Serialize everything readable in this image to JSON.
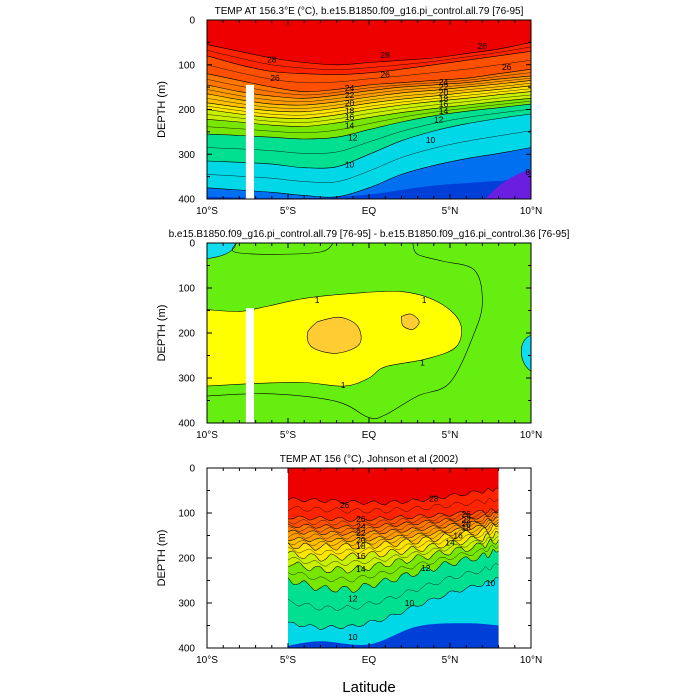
{
  "chart_data": [
    {
      "type": "contour",
      "title": "TEMP AT 156.3°E (°C), b.e15.B1850.f09_g16.pi_control.all.79 [76-95]",
      "xlabel": "",
      "ylabel": "DEPTH (m)",
      "xlim": [
        -10,
        10
      ],
      "ylim": [
        400,
        0
      ],
      "x_tick_labels": [
        "10°S",
        "5°S",
        "EQ",
        "5°N",
        "10°N"
      ],
      "y_tick_labels": [
        "0",
        "100",
        "200",
        "300",
        "400"
      ],
      "contour_interval": 2,
      "isotherms": [
        {
          "level": 28,
          "depths": [
            55,
            70,
            85,
            95,
            100,
            95,
            90,
            85,
            75,
            65,
            50
          ]
        },
        {
          "level": 26,
          "depths": [
            80,
            100,
            115,
            120,
            122,
            118,
            110,
            100,
            90,
            80,
            70
          ]
        },
        {
          "level": 24,
          "depths": [
            120,
            135,
            150,
            160,
            155,
            145,
            140,
            135,
            130,
            120,
            110
          ]
        },
        {
          "level": 22,
          "depths": [
            145,
            160,
            170,
            175,
            168,
            158,
            150,
            145,
            140,
            132,
            125
          ]
        },
        {
          "level": 20,
          "depths": [
            165,
            178,
            188,
            190,
            183,
            172,
            163,
            157,
            150,
            143,
            135
          ]
        },
        {
          "level": 18,
          "depths": [
            185,
            195,
            203,
            205,
            197,
            186,
            177,
            170,
            162,
            155,
            147
          ]
        },
        {
          "level": 16,
          "depths": [
            200,
            210,
            218,
            220,
            212,
            200,
            190,
            182,
            175,
            167,
            160
          ]
        },
        {
          "level": 14,
          "depths": [
            222,
            228,
            235,
            238,
            230,
            218,
            207,
            198,
            190,
            182,
            175
          ]
        },
        {
          "level": 12,
          "depths": [
            255,
            258,
            262,
            266,
            262,
            245,
            228,
            214,
            204,
            196,
            188
          ]
        },
        {
          "level": 10,
          "depths": [
            315,
            318,
            322,
            330,
            328,
            300,
            270,
            248,
            232,
            220,
            210
          ]
        },
        {
          "level": 8,
          "depths": [
            375,
            380,
            385,
            392,
            395,
            375,
            345,
            325,
            310,
            298,
            285
          ]
        }
      ],
      "contour_labels": [
        {
          "text": "28",
          "lat": -6.0,
          "depth": 88
        },
        {
          "text": "28",
          "lat": 1.0,
          "depth": 78
        },
        {
          "text": "26",
          "lat": 7.0,
          "depth": 58
        },
        {
          "text": "26",
          "lat": -5.8,
          "depth": 130
        },
        {
          "text": "26",
          "lat": 1.0,
          "depth": 122
        },
        {
          "text": "26",
          "lat": 8.5,
          "depth": 105
        },
        {
          "text": "24",
          "lat": -1.2,
          "depth": 152
        },
        {
          "text": "22",
          "lat": -1.2,
          "depth": 168
        },
        {
          "text": "20",
          "lat": -1.2,
          "depth": 185
        },
        {
          "text": "18",
          "lat": -1.2,
          "depth": 202
        },
        {
          "text": "16",
          "lat": -1.2,
          "depth": 217
        },
        {
          "text": "14",
          "lat": -1.2,
          "depth": 236
        },
        {
          "text": "12",
          "lat": -1.0,
          "depth": 263
        },
        {
          "text": "10",
          "lat": -1.2,
          "depth": 323
        },
        {
          "text": "24",
          "lat": 4.6,
          "depth": 138
        },
        {
          "text": "22",
          "lat": 4.6,
          "depth": 150
        },
        {
          "text": "20",
          "lat": 4.6,
          "depth": 162
        },
        {
          "text": "18",
          "lat": 4.6,
          "depth": 175
        },
        {
          "text": "16",
          "lat": 4.6,
          "depth": 188
        },
        {
          "text": "14",
          "lat": 4.6,
          "depth": 203
        },
        {
          "text": "12",
          "lat": 4.3,
          "depth": 222
        },
        {
          "text": "10",
          "lat": 3.8,
          "depth": 268
        },
        {
          "text": "8",
          "lat": 9.8,
          "depth": 340
        }
      ],
      "masked_column_lat": [
        -7.6,
        -7.1
      ],
      "masked_column_depth": [
        145,
        400
      ]
    },
    {
      "type": "contour",
      "title": "b.e15.B1850.f09_g16.pi_control.all.79 [76-95] - b.e15.B1850.f09_g16.pi_control.36 [76-95]",
      "xlabel": "",
      "ylabel": "DEPTH (m)",
      "xlim": [
        -10,
        10
      ],
      "ylim": [
        400,
        0
      ],
      "x_tick_labels": [
        "10°S",
        "5°S",
        "EQ",
        "5°N",
        "10°N"
      ],
      "y_tick_labels": [
        "0",
        "100",
        "200",
        "300",
        "400"
      ],
      "contour_interval": 1,
      "contour_labels": [
        {
          "text": "1",
          "lat": -3.2,
          "depth": 127
        },
        {
          "text": "1",
          "lat": 3.4,
          "depth": 127
        },
        {
          "text": "1",
          "lat": 3.3,
          "depth": 265
        },
        {
          "text": "1",
          "lat": -1.6,
          "depth": 315
        }
      ],
      "masked_column_lat": [
        -7.6,
        -7.1
      ],
      "masked_column_depth": [
        145,
        400
      ]
    },
    {
      "type": "contour",
      "title": "TEMP AT 156 (°C), Johnson et al (2002)",
      "xlabel": "Latitude",
      "ylabel": "DEPTH (m)",
      "xlim": [
        -10,
        10
      ],
      "ylim": [
        400,
        0
      ],
      "data_lat_range": [
        -5,
        8
      ],
      "x_tick_labels": [
        "10°S",
        "5°S",
        "EQ",
        "5°N",
        "10°N"
      ],
      "y_tick_labels": [
        "0",
        "100",
        "200",
        "300",
        "400"
      ],
      "contour_interval": 2,
      "isotherms": [
        {
          "level": 28,
          "lat": [
            -5,
            -3,
            -1,
            1,
            3,
            5,
            7,
            8
          ],
          "depths": [
            70,
            72,
            76,
            78,
            72,
            62,
            52,
            45
          ]
        },
        {
          "level": 26,
          "lat": [
            -5,
            -3,
            -1,
            1,
            3,
            5,
            7,
            8
          ],
          "depths": [
            110,
            112,
            115,
            112,
            108,
            103,
            98,
            92
          ]
        },
        {
          "level": 24,
          "lat": [
            -5,
            -3,
            -1,
            1,
            3,
            5,
            7,
            8
          ],
          "depths": [
            128,
            130,
            132,
            128,
            122,
            116,
            108,
            100
          ]
        },
        {
          "level": 22,
          "lat": [
            -5,
            -3,
            -1,
            1,
            3,
            5,
            7,
            8
          ],
          "depths": [
            142,
            144,
            146,
            142,
            136,
            128,
            120,
            110
          ]
        },
        {
          "level": 20,
          "lat": [
            -5,
            -3,
            -1,
            1,
            3,
            5,
            7,
            8
          ],
          "depths": [
            158,
            160,
            160,
            156,
            150,
            140,
            130,
            120
          ]
        },
        {
          "level": 18,
          "lat": [
            -5,
            -3,
            -1,
            1,
            3,
            5,
            7,
            8
          ],
          "depths": [
            172,
            176,
            174,
            170,
            162,
            152,
            140,
            130
          ]
        },
        {
          "level": 16,
          "lat": [
            -5,
            -3,
            -1,
            1,
            3,
            5,
            7,
            8
          ],
          "depths": [
            190,
            200,
            196,
            190,
            180,
            168,
            155,
            145
          ]
        },
        {
          "level": 14,
          "lat": [
            -5,
            -3,
            -1,
            1,
            3,
            5,
            7,
            8
          ],
          "depths": [
            212,
            226,
            226,
            214,
            200,
            186,
            172,
            160
          ]
        },
        {
          "level": 12,
          "lat": [
            -5,
            -3,
            -1,
            1,
            3,
            5,
            7,
            8
          ],
          "depths": [
            248,
            268,
            270,
            252,
            232,
            212,
            196,
            185
          ]
        },
        {
          "level": 10,
          "lat": [
            -5,
            -3,
            -1,
            1,
            3,
            5,
            7,
            8
          ],
          "depths": [
            345,
            355,
            352,
            335,
            305,
            278,
            258,
            245
          ]
        }
      ],
      "contour_labels": [
        {
          "text": "26",
          "lat": -1.5,
          "depth": 82
        },
        {
          "text": "28",
          "lat": 4.0,
          "depth": 68
        },
        {
          "text": "26",
          "lat": -0.5,
          "depth": 113
        },
        {
          "text": "24",
          "lat": -0.5,
          "depth": 130
        },
        {
          "text": "22",
          "lat": -0.5,
          "depth": 144
        },
        {
          "text": "20",
          "lat": -0.5,
          "depth": 160
        },
        {
          "text": "18",
          "lat": -0.5,
          "depth": 173
        },
        {
          "text": "16",
          "lat": -0.5,
          "depth": 195
        },
        {
          "text": "14",
          "lat": -0.5,
          "depth": 224
        },
        {
          "text": "12",
          "lat": 3.5,
          "depth": 222
        },
        {
          "text": "12",
          "lat": -1.0,
          "depth": 290
        },
        {
          "text": "10",
          "lat": 2.5,
          "depth": 300
        },
        {
          "text": "10",
          "lat": -1.0,
          "depth": 375
        },
        {
          "text": "26",
          "lat": 6.0,
          "depth": 102
        },
        {
          "text": "22",
          "lat": 6.0,
          "depth": 115
        },
        {
          "text": "20",
          "lat": 6.0,
          "depth": 123
        },
        {
          "text": "18",
          "lat": 6.0,
          "depth": 132
        },
        {
          "text": "16",
          "lat": 5.5,
          "depth": 150
        },
        {
          "text": "14",
          "lat": 5.0,
          "depth": 165
        },
        {
          "text": "10",
          "lat": 7.5,
          "depth": 255
        }
      ]
    }
  ],
  "colors": {
    "warm_28": "#ee0000",
    "band_26": "#ff2400",
    "band_24": "#ff5000",
    "band_22": "#ff7600",
    "band_20": "#ff9a00",
    "band_18": "#ffc000",
    "band_16": "#ffe600",
    "band_14": "#c8f000",
    "band_12": "#78e600",
    "band_10": "#00e090",
    "band_8": "#00d8e8",
    "band_6": "#00aaff",
    "band_4": "#0070f0",
    "deep": "#0040d8",
    "deepest": "#6a1ee0",
    "diff_0": "#66ee11",
    "diff_1": "#ffff00",
    "diff_2": "#ffcc33",
    "diff_neg": "#11ddee"
  }
}
